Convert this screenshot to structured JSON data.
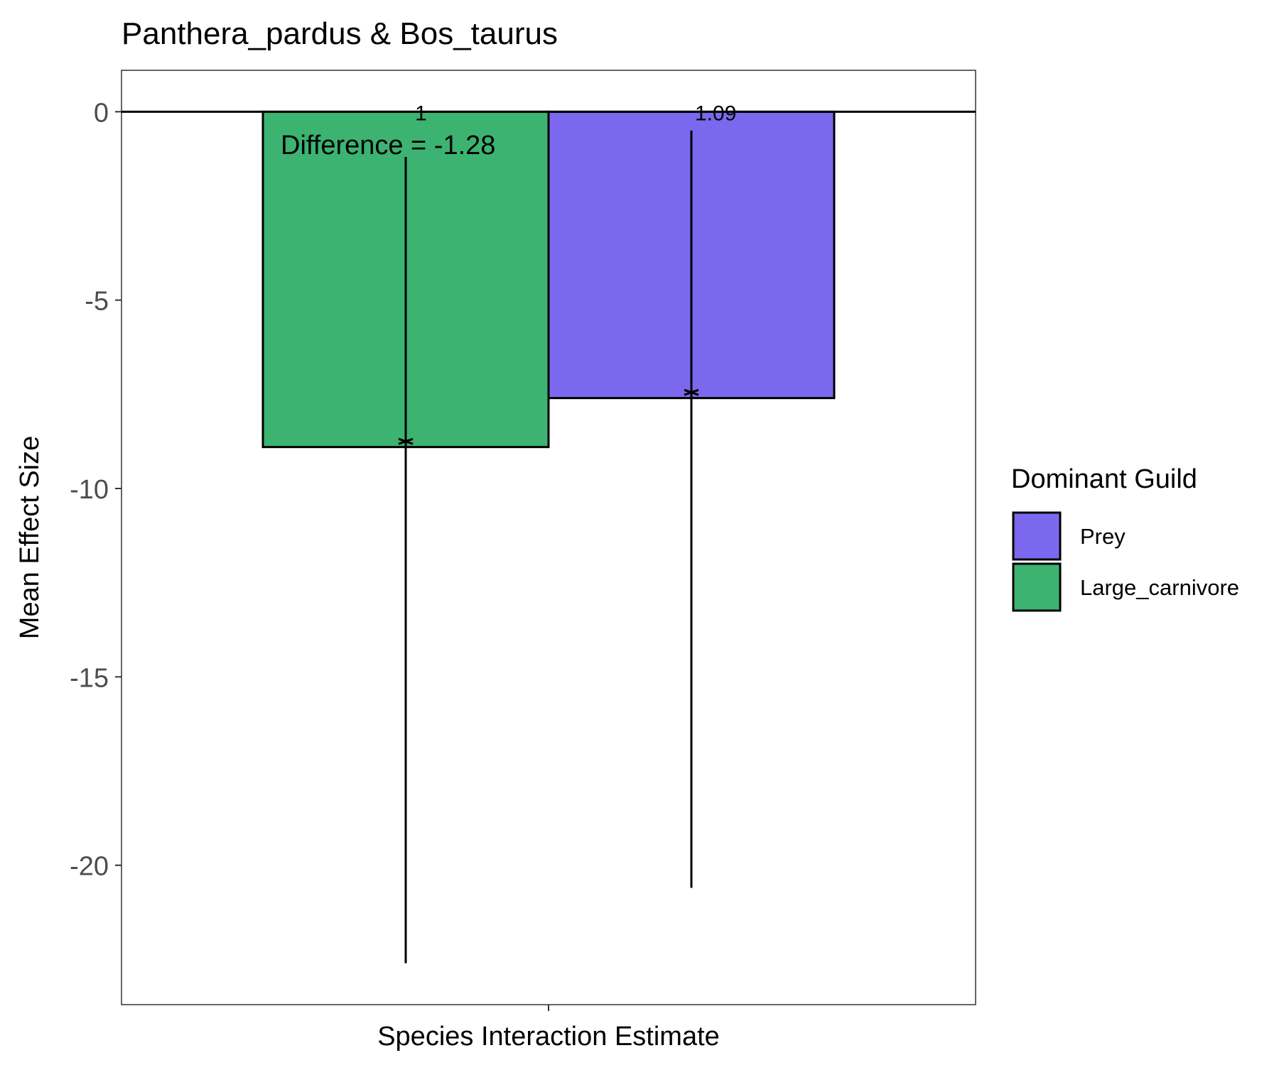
{
  "chart_data": {
    "type": "bar",
    "title": "Panthera_pardus & Bos_taurus",
    "xlabel": "Species Interaction Estimate",
    "ylabel": "Mean Effect Size",
    "ylim": [
      -23.7,
      1.1
    ],
    "yticks": [
      0,
      -5,
      -10,
      -15,
      -20
    ],
    "ytick_labels": [
      "0",
      "-5",
      "-10",
      "-15",
      "-20"
    ],
    "grid": false,
    "legend_position": "right",
    "legend_title": "Dominant Guild",
    "series": [
      {
        "name": "Large_carnivore",
        "color": "#3CB371",
        "value": -8.9,
        "point": -8.75,
        "error_low": -22.6,
        "error_high": -1.2,
        "label": "1"
      },
      {
        "name": "Prey",
        "color": "#7B68EE",
        "value": -7.6,
        "point": -7.45,
        "error_low": -20.6,
        "error_high": -0.5,
        "label": "1.09"
      }
    ],
    "legend_order": [
      "Prey",
      "Large_carnivore"
    ],
    "annotation": "Difference = -1.28"
  }
}
